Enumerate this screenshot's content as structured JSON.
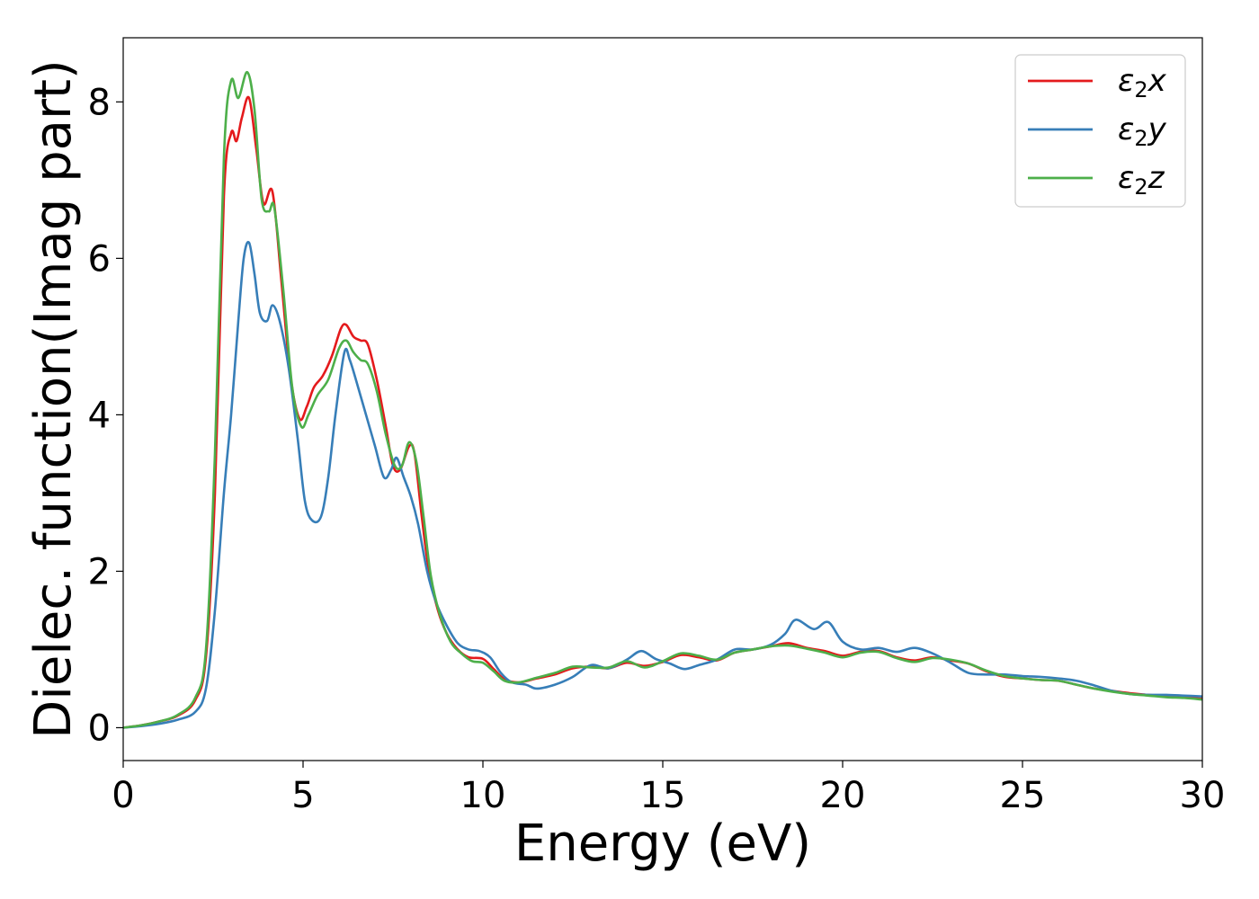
{
  "chart_data": {
    "type": "line",
    "title": "",
    "xlabel": "Energy (eV)",
    "ylabel": "Dielec. function(Imag part)",
    "xlim": [
      0,
      30
    ],
    "ylim": [
      -0.42,
      8.82
    ],
    "xticks": [
      0,
      5,
      10,
      15,
      20,
      25,
      30
    ],
    "xtick_labels": [
      "0",
      "5",
      "10",
      "15",
      "20",
      "25",
      "30"
    ],
    "yticks": [
      0,
      2,
      4,
      6,
      8
    ],
    "ytick_labels": [
      "0",
      "2",
      "4",
      "6",
      "8"
    ],
    "grid": false,
    "legend": "top-right",
    "series": [
      {
        "name": "ε2x",
        "legend_base": "ε",
        "legend_sub": "2",
        "legend_var": "x",
        "color": "#e41a1c",
        "points": [
          [
            0,
            0
          ],
          [
            0.5,
            0.03
          ],
          [
            1,
            0.08
          ],
          [
            1.5,
            0.15
          ],
          [
            2,
            0.35
          ],
          [
            2.3,
            0.9
          ],
          [
            2.55,
            3.0
          ],
          [
            2.8,
            6.8
          ],
          [
            3.0,
            7.6
          ],
          [
            3.15,
            7.5
          ],
          [
            3.3,
            7.8
          ],
          [
            3.5,
            8.05
          ],
          [
            3.7,
            7.4
          ],
          [
            3.9,
            6.7
          ],
          [
            4.15,
            6.85
          ],
          [
            4.4,
            5.7
          ],
          [
            4.65,
            4.5
          ],
          [
            4.9,
            3.95
          ],
          [
            5.1,
            4.1
          ],
          [
            5.3,
            4.35
          ],
          [
            5.55,
            4.5
          ],
          [
            5.8,
            4.75
          ],
          [
            6.05,
            5.1
          ],
          [
            6.2,
            5.15
          ],
          [
            6.4,
            5.0
          ],
          [
            6.6,
            4.95
          ],
          [
            6.8,
            4.9
          ],
          [
            7.05,
            4.45
          ],
          [
            7.3,
            3.85
          ],
          [
            7.5,
            3.35
          ],
          [
            7.7,
            3.3
          ],
          [
            7.95,
            3.6
          ],
          [
            8.1,
            3.5
          ],
          [
            8.3,
            2.7
          ],
          [
            8.5,
            2.0
          ],
          [
            8.75,
            1.5
          ],
          [
            9.0,
            1.2
          ],
          [
            9.3,
            1.0
          ],
          [
            9.6,
            0.9
          ],
          [
            10.0,
            0.88
          ],
          [
            10.3,
            0.75
          ],
          [
            10.6,
            0.62
          ],
          [
            11.0,
            0.58
          ],
          [
            11.5,
            0.63
          ],
          [
            12.0,
            0.68
          ],
          [
            12.5,
            0.76
          ],
          [
            13.0,
            0.78
          ],
          [
            13.5,
            0.76
          ],
          [
            14.0,
            0.83
          ],
          [
            14.5,
            0.79
          ],
          [
            15.0,
            0.84
          ],
          [
            15.5,
            0.93
          ],
          [
            16.0,
            0.9
          ],
          [
            16.5,
            0.86
          ],
          [
            17.0,
            0.96
          ],
          [
            17.5,
            1.0
          ],
          [
            18.0,
            1.04
          ],
          [
            18.5,
            1.08
          ],
          [
            19.0,
            1.02
          ],
          [
            19.5,
            0.98
          ],
          [
            20.0,
            0.92
          ],
          [
            20.5,
            0.97
          ],
          [
            21.0,
            0.98
          ],
          [
            21.5,
            0.9
          ],
          [
            22.0,
            0.86
          ],
          [
            22.5,
            0.9
          ],
          [
            23.0,
            0.86
          ],
          [
            23.5,
            0.82
          ],
          [
            24.0,
            0.72
          ],
          [
            24.5,
            0.65
          ],
          [
            25.0,
            0.63
          ],
          [
            25.5,
            0.61
          ],
          [
            26.0,
            0.6
          ],
          [
            26.5,
            0.55
          ],
          [
            27.0,
            0.5
          ],
          [
            27.5,
            0.47
          ],
          [
            28.0,
            0.44
          ],
          [
            28.5,
            0.42
          ],
          [
            29.0,
            0.4
          ],
          [
            29.5,
            0.39
          ],
          [
            30.0,
            0.37
          ]
        ]
      },
      {
        "name": "ε2y",
        "legend_base": "ε",
        "legend_sub": "2",
        "legend_var": "y",
        "color": "#377eb8",
        "points": [
          [
            0,
            0
          ],
          [
            0.5,
            0.02
          ],
          [
            1,
            0.05
          ],
          [
            1.5,
            0.1
          ],
          [
            2,
            0.2
          ],
          [
            2.3,
            0.5
          ],
          [
            2.55,
            1.5
          ],
          [
            2.8,
            3.0
          ],
          [
            3.0,
            4.0
          ],
          [
            3.2,
            5.2
          ],
          [
            3.35,
            6.0
          ],
          [
            3.5,
            6.2
          ],
          [
            3.65,
            5.8
          ],
          [
            3.8,
            5.3
          ],
          [
            4.0,
            5.2
          ],
          [
            4.15,
            5.4
          ],
          [
            4.35,
            5.2
          ],
          [
            4.6,
            4.6
          ],
          [
            4.85,
            3.7
          ],
          [
            5.05,
            2.9
          ],
          [
            5.25,
            2.65
          ],
          [
            5.5,
            2.7
          ],
          [
            5.7,
            3.2
          ],
          [
            5.9,
            4.0
          ],
          [
            6.15,
            4.8
          ],
          [
            6.3,
            4.7
          ],
          [
            6.5,
            4.4
          ],
          [
            6.75,
            4.0
          ],
          [
            7.0,
            3.6
          ],
          [
            7.25,
            3.2
          ],
          [
            7.45,
            3.3
          ],
          [
            7.6,
            3.45
          ],
          [
            7.8,
            3.2
          ],
          [
            8.0,
            2.95
          ],
          [
            8.2,
            2.6
          ],
          [
            8.45,
            2.0
          ],
          [
            8.7,
            1.6
          ],
          [
            9.0,
            1.3
          ],
          [
            9.3,
            1.08
          ],
          [
            9.6,
            1.0
          ],
          [
            9.9,
            0.98
          ],
          [
            10.2,
            0.9
          ],
          [
            10.5,
            0.7
          ],
          [
            10.8,
            0.58
          ],
          [
            11.2,
            0.55
          ],
          [
            11.5,
            0.5
          ],
          [
            12.0,
            0.55
          ],
          [
            12.5,
            0.65
          ],
          [
            13.0,
            0.8
          ],
          [
            13.5,
            0.76
          ],
          [
            14.0,
            0.87
          ],
          [
            14.4,
            0.98
          ],
          [
            14.8,
            0.88
          ],
          [
            15.2,
            0.82
          ],
          [
            15.6,
            0.75
          ],
          [
            16.0,
            0.8
          ],
          [
            16.5,
            0.87
          ],
          [
            17.0,
            1.0
          ],
          [
            17.5,
            1.0
          ],
          [
            18.0,
            1.06
          ],
          [
            18.4,
            1.2
          ],
          [
            18.7,
            1.38
          ],
          [
            19.2,
            1.26
          ],
          [
            19.6,
            1.35
          ],
          [
            20.0,
            1.1
          ],
          [
            20.5,
            1.0
          ],
          [
            21.0,
            1.02
          ],
          [
            21.5,
            0.97
          ],
          [
            22.0,
            1.02
          ],
          [
            22.5,
            0.95
          ],
          [
            23.0,
            0.83
          ],
          [
            23.5,
            0.7
          ],
          [
            24.0,
            0.68
          ],
          [
            24.5,
            0.68
          ],
          [
            25.0,
            0.66
          ],
          [
            25.5,
            0.65
          ],
          [
            26.0,
            0.63
          ],
          [
            26.5,
            0.6
          ],
          [
            27.0,
            0.54
          ],
          [
            27.5,
            0.47
          ],
          [
            28.0,
            0.43
          ],
          [
            28.5,
            0.42
          ],
          [
            29.0,
            0.42
          ],
          [
            29.5,
            0.41
          ],
          [
            30.0,
            0.4
          ]
        ]
      },
      {
        "name": "ε2z",
        "legend_base": "ε",
        "legend_sub": "2",
        "legend_var": "z",
        "color": "#4daf4a",
        "points": [
          [
            0,
            0
          ],
          [
            0.5,
            0.03
          ],
          [
            1,
            0.08
          ],
          [
            1.5,
            0.16
          ],
          [
            2,
            0.38
          ],
          [
            2.3,
            1.0
          ],
          [
            2.55,
            3.5
          ],
          [
            2.8,
            7.3
          ],
          [
            3.0,
            8.27
          ],
          [
            3.2,
            8.05
          ],
          [
            3.45,
            8.38
          ],
          [
            3.65,
            7.9
          ],
          [
            3.85,
            6.75
          ],
          [
            4.05,
            6.6
          ],
          [
            4.2,
            6.65
          ],
          [
            4.45,
            5.6
          ],
          [
            4.7,
            4.35
          ],
          [
            4.95,
            3.85
          ],
          [
            5.15,
            4.0
          ],
          [
            5.4,
            4.25
          ],
          [
            5.7,
            4.45
          ],
          [
            6.0,
            4.85
          ],
          [
            6.2,
            4.95
          ],
          [
            6.4,
            4.8
          ],
          [
            6.6,
            4.7
          ],
          [
            6.8,
            4.65
          ],
          [
            7.05,
            4.3
          ],
          [
            7.3,
            3.75
          ],
          [
            7.55,
            3.35
          ],
          [
            7.75,
            3.35
          ],
          [
            7.95,
            3.65
          ],
          [
            8.15,
            3.4
          ],
          [
            8.35,
            2.7
          ],
          [
            8.55,
            1.95
          ],
          [
            8.8,
            1.45
          ],
          [
            9.1,
            1.1
          ],
          [
            9.4,
            0.95
          ],
          [
            9.7,
            0.85
          ],
          [
            10.0,
            0.83
          ],
          [
            10.3,
            0.72
          ],
          [
            10.6,
            0.6
          ],
          [
            11.0,
            0.58
          ],
          [
            11.5,
            0.64
          ],
          [
            12.0,
            0.7
          ],
          [
            12.5,
            0.78
          ],
          [
            13.0,
            0.77
          ],
          [
            13.5,
            0.77
          ],
          [
            14.0,
            0.85
          ],
          [
            14.5,
            0.77
          ],
          [
            15.0,
            0.85
          ],
          [
            15.5,
            0.95
          ],
          [
            16.0,
            0.92
          ],
          [
            16.5,
            0.87
          ],
          [
            17.0,
            0.96
          ],
          [
            17.5,
            1.0
          ],
          [
            18.0,
            1.04
          ],
          [
            18.5,
            1.05
          ],
          [
            19.0,
            1.01
          ],
          [
            19.5,
            0.96
          ],
          [
            20.0,
            0.9
          ],
          [
            20.5,
            0.96
          ],
          [
            21.0,
            0.97
          ],
          [
            21.5,
            0.89
          ],
          [
            22.0,
            0.84
          ],
          [
            22.5,
            0.89
          ],
          [
            23.0,
            0.87
          ],
          [
            23.5,
            0.82
          ],
          [
            24.0,
            0.73
          ],
          [
            24.5,
            0.66
          ],
          [
            25.0,
            0.63
          ],
          [
            25.5,
            0.61
          ],
          [
            26.0,
            0.6
          ],
          [
            26.5,
            0.55
          ],
          [
            27.0,
            0.5
          ],
          [
            27.5,
            0.46
          ],
          [
            28.0,
            0.43
          ],
          [
            28.5,
            0.41
          ],
          [
            29.0,
            0.39
          ],
          [
            29.5,
            0.38
          ],
          [
            30.0,
            0.36
          ]
        ]
      }
    ]
  }
}
